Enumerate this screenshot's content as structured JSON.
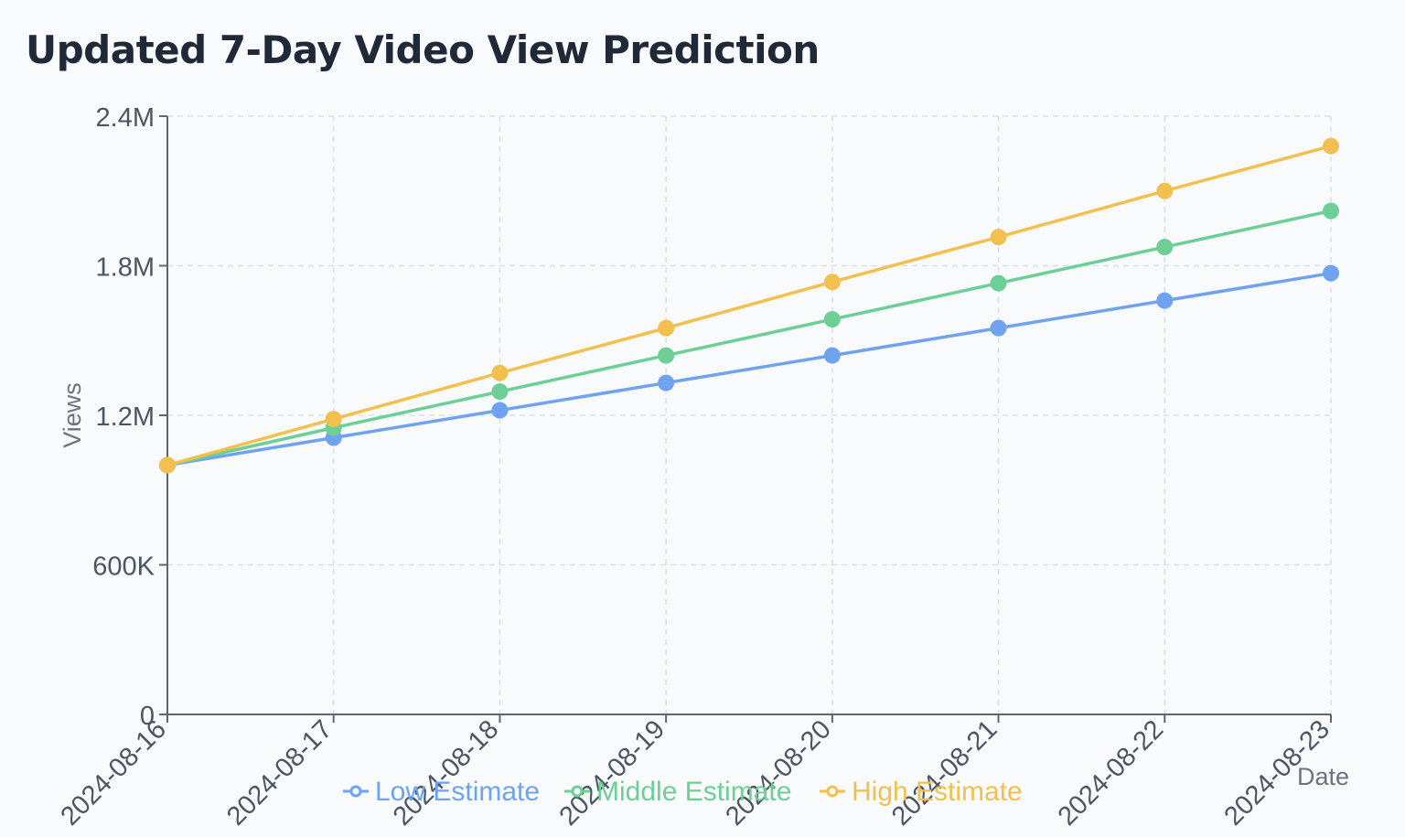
{
  "title": "Updated 7-Day Video View Prediction",
  "chart_data": {
    "type": "line",
    "title": "Updated 7-Day Video View Prediction",
    "xlabel": "Date",
    "ylabel": "Views",
    "x": [
      "2024-08-16",
      "2024-08-17",
      "2024-08-18",
      "2024-08-19",
      "2024-08-20",
      "2024-08-21",
      "2024-08-22",
      "2024-08-23"
    ],
    "x_tick_labels": [
      "2024-08-16",
      "2024-08-17",
      "2024-08-18",
      "2024-08-19",
      "2024-08-20",
      "2024-08-21",
      "2024-08-22",
      "2024-08-23"
    ],
    "ylim": [
      0,
      2400000
    ],
    "y_ticks": [
      0,
      600000,
      1200000,
      1800000,
      2400000
    ],
    "y_tick_labels": [
      "0",
      "600K",
      "1.2M",
      "1.8M",
      "2.4M"
    ],
    "grid": true,
    "legend_position": "bottom",
    "series": [
      {
        "name": "Low Estimate",
        "color": "#6fa3f0",
        "values": [
          1000000,
          1110000,
          1220000,
          1330000,
          1440000,
          1550000,
          1660000,
          1770000
        ]
      },
      {
        "name": "Middle Estimate",
        "color": "#6dcf96",
        "values": [
          1000000,
          1150000,
          1295000,
          1440000,
          1585000,
          1730000,
          1875000,
          2020000
        ]
      },
      {
        "name": "High Estimate",
        "color": "#f2c04e",
        "values": [
          1000000,
          1185000,
          1370000,
          1550000,
          1735000,
          1915000,
          2100000,
          2280000
        ]
      }
    ]
  }
}
